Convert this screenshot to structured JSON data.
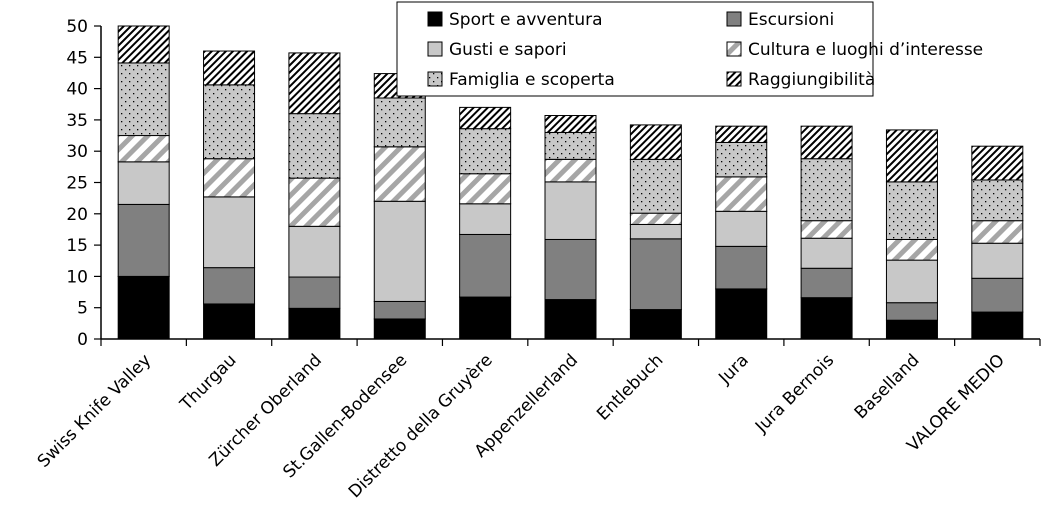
{
  "chart_data": {
    "type": "bar",
    "stacked": true,
    "title": "",
    "xlabel": "",
    "ylabel": "",
    "ylim": [
      0,
      50
    ],
    "yticks": [
      0,
      5,
      10,
      15,
      20,
      25,
      30,
      35,
      40,
      45,
      50
    ],
    "grid": false,
    "legend_position": "top-right",
    "categories": [
      "Swiss Knife Valley",
      "Thurgau",
      "Zürcher Oberland",
      "St.Gallen-Bodensee",
      "Distretto della Gruyère",
      "Appenzellerland",
      "Entlebuch",
      "Jura",
      "Jura Bernois",
      "Baselland",
      "VALORE MEDIO"
    ],
    "series": [
      {
        "name": "Sport e avventura",
        "pattern": "solid-black",
        "values": [
          10.0,
          5.6,
          4.9,
          3.2,
          6.7,
          6.3,
          4.7,
          8.0,
          6.6,
          3.0,
          4.3
        ]
      },
      {
        "name": "Escursioni",
        "pattern": "solid-dark-gray",
        "values": [
          11.5,
          5.8,
          5.0,
          2.8,
          10.0,
          9.6,
          11.3,
          6.8,
          4.7,
          2.8,
          5.4
        ]
      },
      {
        "name": "Gusti e sapori",
        "pattern": "solid-light-gray",
        "values": [
          6.8,
          11.3,
          8.1,
          16.0,
          4.9,
          9.2,
          2.3,
          5.6,
          4.8,
          6.8,
          5.6
        ]
      },
      {
        "name": "Cultura e luoghi d’interesse",
        "pattern": "diagonal-gray-stripes",
        "values": [
          4.2,
          6.1,
          7.7,
          8.7,
          4.8,
          3.6,
          1.8,
          5.5,
          2.8,
          3.3,
          3.6
        ]
      },
      {
        "name": "Famiglia e scoperta",
        "pattern": "dotted-gray",
        "values": [
          11.6,
          11.8,
          10.3,
          7.8,
          7.2,
          4.3,
          8.6,
          5.5,
          9.9,
          9.2,
          6.5
        ]
      },
      {
        "name": "Raggiungibilità",
        "pattern": "diagonal-black-hatch",
        "values": [
          5.9,
          5.4,
          9.7,
          3.9,
          3.4,
          2.7,
          5.5,
          2.6,
          5.2,
          8.3,
          5.4
        ]
      }
    ]
  }
}
